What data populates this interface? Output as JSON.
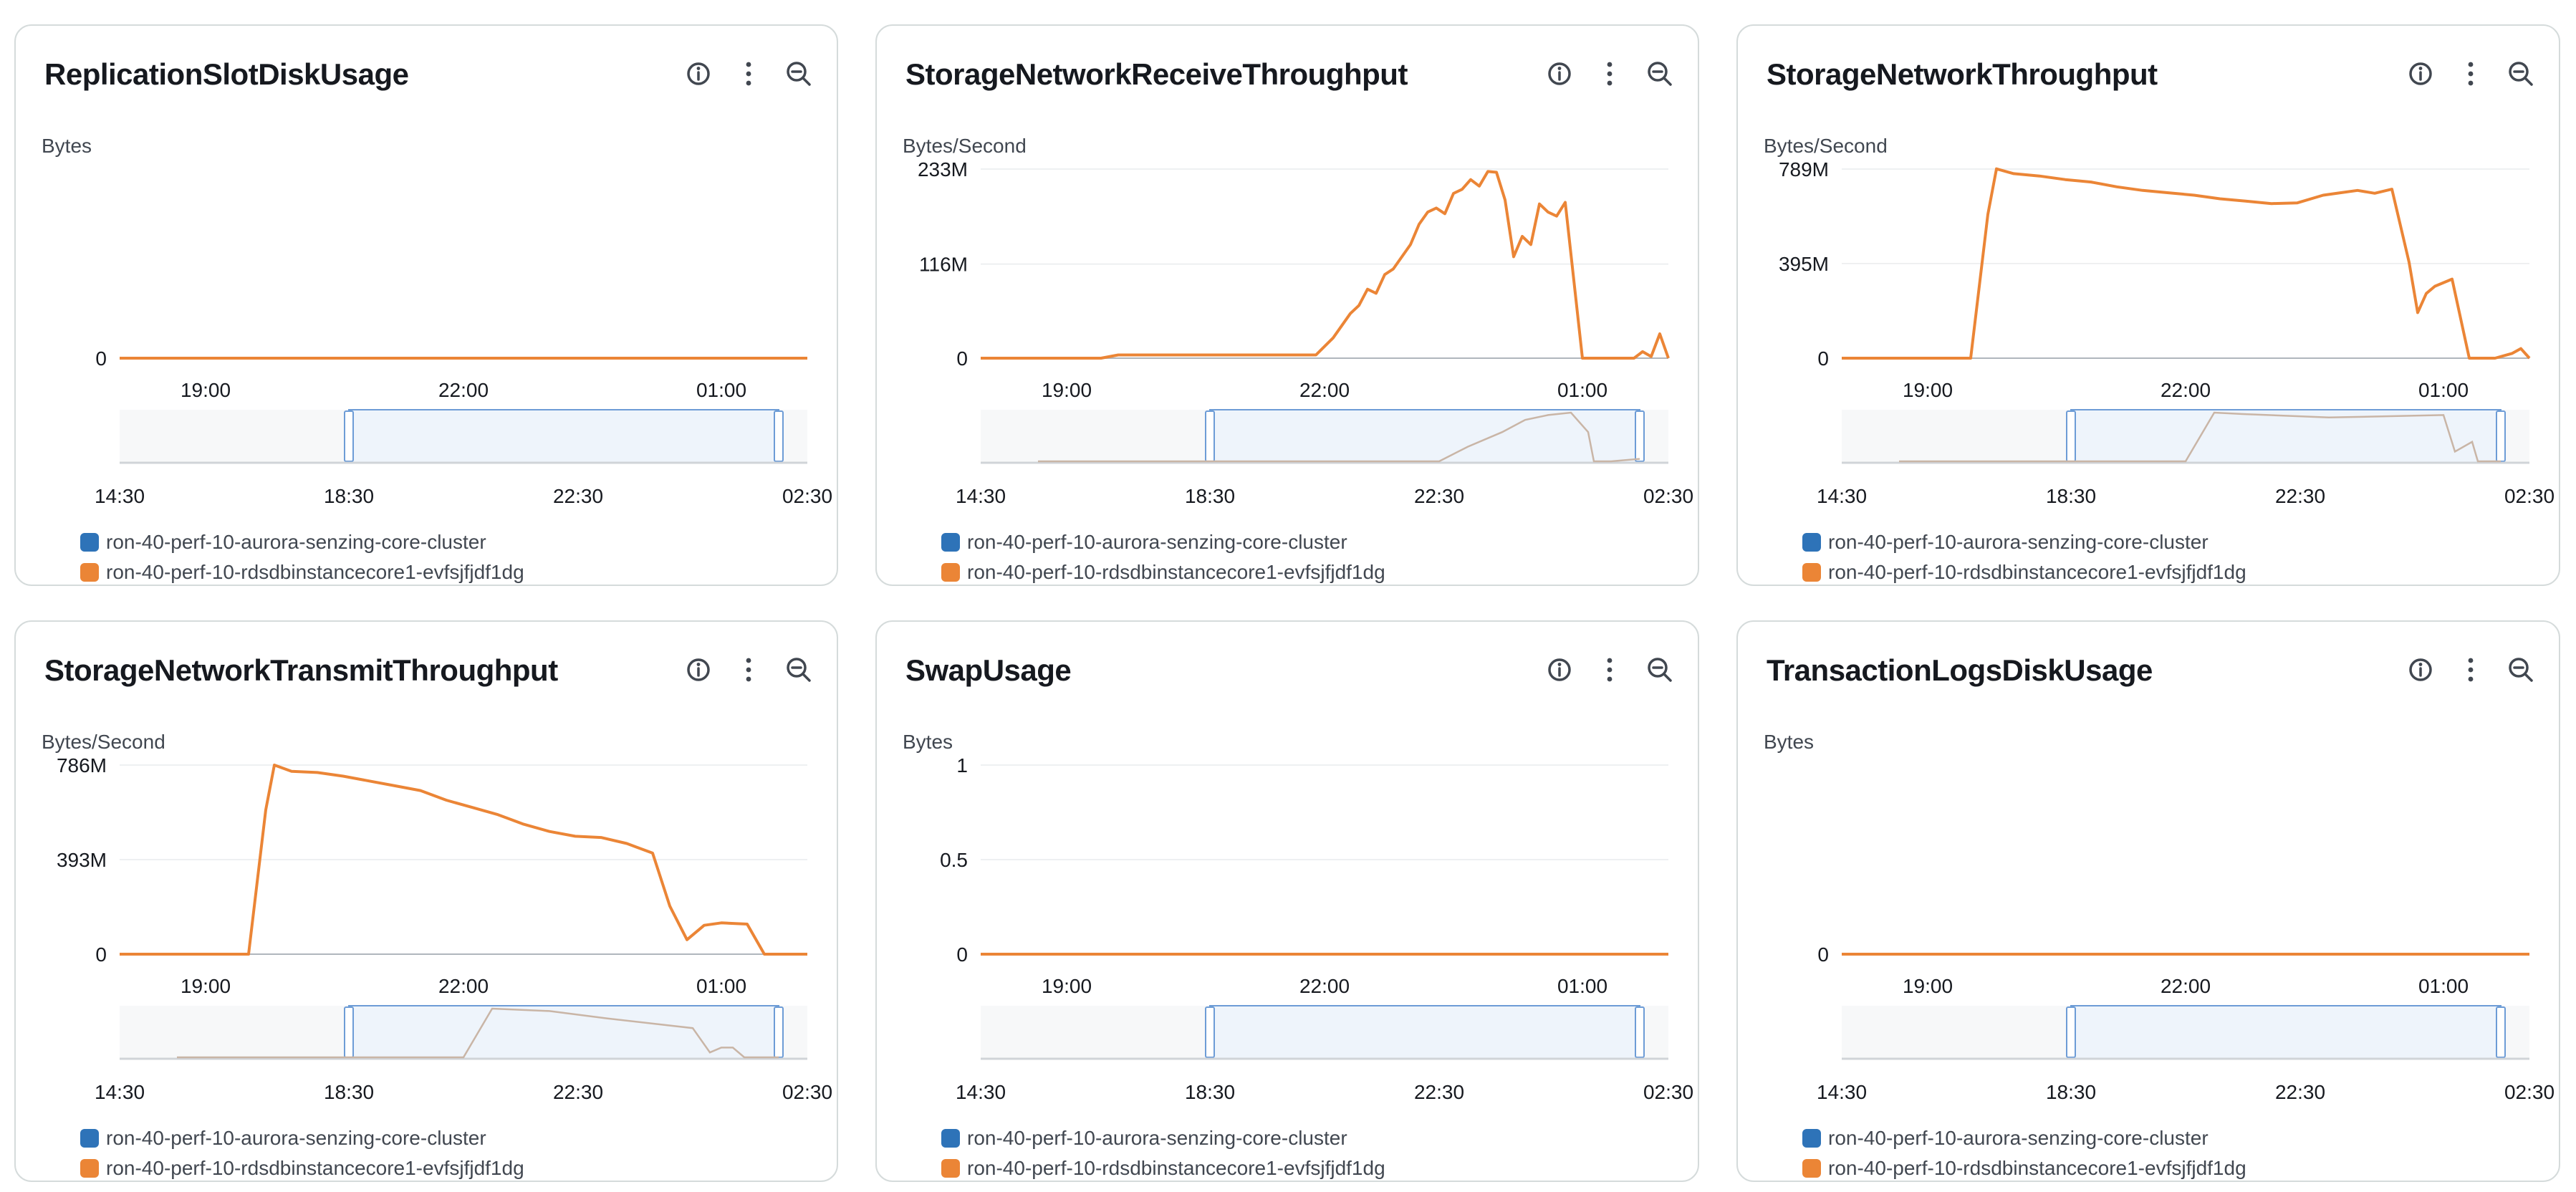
{
  "colors": {
    "series_cluster": "#2e73b8",
    "series_instance": "#eb8536",
    "grid": "#e9ebed",
    "axis": "#b0b6bd",
    "selection_fill": "#eef4fb",
    "selection_border": "#6d9cd6",
    "overview_line": "#c9b5a6",
    "overview_base": "#d0d4d8"
  },
  "actions": {
    "info_icon": "info-icon",
    "menu_icon": "more-vertical-icon",
    "zoom_icon": "zoom-out-icon"
  },
  "legend": [
    {
      "label": "ron-40-perf-10-aurora-senzing-core-cluster",
      "color": "#2e73b8"
    },
    {
      "label": "ron-40-perf-10-rdsdbinstancecore1-evfsjfjdf1dg",
      "color": "#eb8536"
    }
  ],
  "main_time_labels": [
    "19:00",
    "22:00",
    "01:00"
  ],
  "overview_time_labels": [
    "14:30",
    "18:30",
    "22:30",
    "02:30"
  ],
  "panels": [
    {
      "title": "ReplicationSlotDiskUsage",
      "unit": "Bytes",
      "chart_data": {
        "type": "line",
        "ylabel": "Bytes",
        "y_ticks": [
          "0"
        ],
        "y_tick_values": [
          0
        ],
        "ylim": [
          0,
          1
        ],
        "x_tick_labels": [
          "19:00",
          "22:00",
          "01:00"
        ],
        "x_range_hours": [
          18.0,
          26.0
        ],
        "x": [
          18.0,
          26.0
        ],
        "series": [
          {
            "name": "ron-40-perf-10-rdsdbinstancecore1-evfsjfjdf1dg",
            "values": [
              0,
              0
            ]
          }
        ],
        "overview": {
          "selection_hours": [
            18.5,
            26.0
          ],
          "x": [],
          "values": []
        }
      }
    },
    {
      "title": "StorageNetworkReceiveThroughput",
      "unit": "Bytes/Second",
      "chart_data": {
        "type": "line",
        "ylabel": "Bytes/Second",
        "y_ticks": [
          "233M",
          "116M",
          "0"
        ],
        "y_tick_values": [
          233,
          116,
          0
        ],
        "ylim": [
          0,
          233
        ],
        "x_tick_labels": [
          "19:00",
          "22:00",
          "01:00"
        ],
        "x_range_hours": [
          18.0,
          26.0
        ],
        "x": [
          18.0,
          19.4,
          19.6,
          21.7,
          21.9,
          22.1,
          22.2,
          22.3,
          22.4,
          22.5,
          22.6,
          22.7,
          22.8,
          22.9,
          23.0,
          23.1,
          23.2,
          23.3,
          23.4,
          23.5,
          23.6,
          23.7,
          23.8,
          23.9,
          24.0,
          24.1,
          24.2,
          24.3,
          24.4,
          24.5,
          24.6,
          24.7,
          24.8,
          25.0,
          25.2,
          25.4,
          25.6,
          25.7,
          25.8,
          25.9,
          26.0
        ],
        "series": [
          {
            "name": "ron-40-perf-10-rdsdbinstancecore1-evfsjfjdf1dg",
            "values": [
              0,
              0,
              4,
              4,
              4,
              25,
              40,
              55,
              65,
              85,
              80,
              103,
              110,
              125,
              140,
              165,
              180,
              185,
              178,
              203,
              208,
              220,
              212,
              230,
              229,
              195,
              125,
              150,
              140,
              190,
              180,
              175,
              192,
              0,
              0,
              0,
              0,
              8,
              2,
              30,
              0
            ]
          }
        ],
        "overview": {
          "selection_hours": [
            18.5,
            26.0
          ],
          "x": [
            15.5,
            22.5,
            23.0,
            23.6,
            24.0,
            24.4,
            24.8,
            25.1,
            25.2,
            25.5,
            26.0
          ],
          "values": [
            0,
            0,
            30,
            60,
            85,
            95,
            100,
            60,
            0,
            0,
            5
          ]
        }
      }
    },
    {
      "title": "StorageNetworkThroughput",
      "unit": "Bytes/Second",
      "chart_data": {
        "type": "line",
        "ylabel": "Bytes/Second",
        "y_ticks": [
          "789M",
          "395M",
          "0"
        ],
        "y_tick_values": [
          789,
          395,
          0
        ],
        "ylim": [
          0,
          789
        ],
        "x_tick_labels": [
          "19:00",
          "22:00",
          "01:00"
        ],
        "x_range_hours": [
          18.0,
          26.0
        ],
        "x": [
          18.0,
          19.5,
          19.7,
          19.8,
          20.0,
          20.3,
          20.6,
          20.9,
          21.2,
          21.5,
          21.8,
          22.1,
          22.4,
          22.7,
          23.0,
          23.3,
          23.6,
          23.8,
          24.0,
          24.2,
          24.4,
          24.6,
          24.7,
          24.8,
          24.9,
          25.1,
          25.3,
          25.4,
          25.6,
          25.8,
          25.9,
          26.0
        ],
        "series": [
          {
            "name": "ron-40-perf-10-rdsdbinstancecore1-evfsjfjdf1dg",
            "values": [
              0,
              0,
              600,
              790,
              770,
              760,
              745,
              735,
              715,
              700,
              690,
              680,
              665,
              655,
              645,
              648,
              680,
              690,
              700,
              688,
              705,
              400,
              190,
              270,
              300,
              330,
              0,
              0,
              0,
              20,
              40,
              0
            ]
          }
        ],
        "overview": {
          "selection_hours": [
            18.5,
            26.0
          ],
          "x": [
            15.5,
            20.5,
            21.0,
            21.5,
            23.0,
            25.0,
            25.2,
            25.5,
            25.6,
            26.0
          ],
          "values": [
            0,
            0,
            100,
            97,
            90,
            95,
            20,
            40,
            0,
            0
          ]
        }
      }
    },
    {
      "title": "StorageNetworkTransmitThroughput",
      "unit": "Bytes/Second",
      "chart_data": {
        "type": "line",
        "ylabel": "Bytes/Second",
        "y_ticks": [
          "786M",
          "393M",
          "0"
        ],
        "y_tick_values": [
          786,
          393,
          0
        ],
        "ylim": [
          0,
          786
        ],
        "x_tick_labels": [
          "19:00",
          "22:00",
          "01:00"
        ],
        "x_range_hours": [
          18.0,
          26.0
        ],
        "x": [
          18.0,
          19.5,
          19.7,
          19.8,
          20.0,
          20.3,
          20.6,
          20.9,
          21.2,
          21.5,
          21.8,
          22.1,
          22.4,
          22.7,
          23.0,
          23.3,
          23.6,
          23.9,
          24.2,
          24.4,
          24.6,
          24.8,
          25.0,
          25.3,
          25.5,
          25.7,
          26.0
        ],
        "series": [
          {
            "name": "ron-40-perf-10-rdsdbinstancecore1-evfsjfjdf1dg",
            "values": [
              0,
              0,
              600,
              786,
              760,
              755,
              740,
              720,
              700,
              680,
              640,
              610,
              580,
              540,
              510,
              490,
              485,
              460,
              420,
              200,
              60,
              120,
              130,
              125,
              0,
              0,
              0
            ]
          }
        ],
        "overview": {
          "selection_hours": [
            18.5,
            26.0
          ],
          "x": [
            15.5,
            20.5,
            21.0,
            22.0,
            23.0,
            24.5,
            24.8,
            25.0,
            25.2,
            25.4,
            26.0
          ],
          "values": [
            0,
            0,
            100,
            95,
            80,
            60,
            10,
            20,
            20,
            0,
            0
          ]
        }
      }
    },
    {
      "title": "SwapUsage",
      "unit": "Bytes",
      "chart_data": {
        "type": "line",
        "ylabel": "Bytes",
        "y_ticks": [
          "1",
          "0.5",
          "0"
        ],
        "y_tick_values": [
          1,
          0.5,
          0
        ],
        "ylim": [
          0,
          1
        ],
        "x_tick_labels": [
          "19:00",
          "22:00",
          "01:00"
        ],
        "x_range_hours": [
          18.0,
          26.0
        ],
        "x": [
          18.0,
          26.0
        ],
        "series": [
          {
            "name": "ron-40-perf-10-rdsdbinstancecore1-evfsjfjdf1dg",
            "values": [
              0,
              0
            ]
          }
        ],
        "overview": {
          "selection_hours": [
            18.5,
            26.0
          ],
          "x": [],
          "values": []
        }
      }
    },
    {
      "title": "TransactionLogsDiskUsage",
      "unit": "Bytes",
      "chart_data": {
        "type": "line",
        "ylabel": "Bytes",
        "y_ticks": [
          "0"
        ],
        "y_tick_values": [
          0
        ],
        "ylim": [
          0,
          1
        ],
        "x_tick_labels": [
          "19:00",
          "22:00",
          "01:00"
        ],
        "x_range_hours": [
          18.0,
          26.0
        ],
        "x": [
          18.0,
          26.0
        ],
        "series": [
          {
            "name": "ron-40-perf-10-rdsdbinstancecore1-evfsjfjdf1dg",
            "values": [
              0,
              0
            ]
          }
        ],
        "overview": {
          "selection_hours": [
            18.5,
            26.0
          ],
          "x": [],
          "values": []
        }
      }
    }
  ]
}
